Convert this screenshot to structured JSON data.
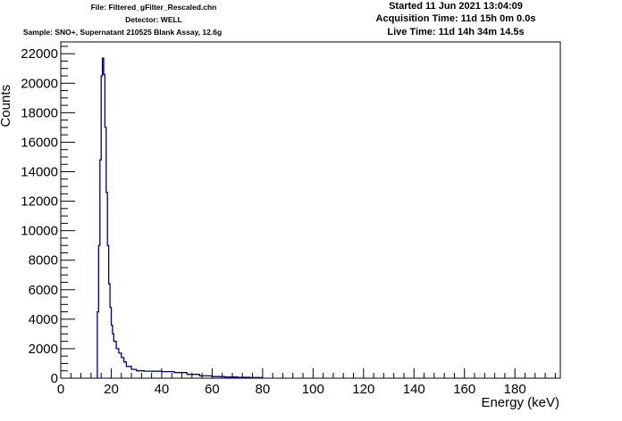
{
  "header": {
    "file": "File: Filtered_gFilter_Rescaled.chn",
    "detector": "Detector: WELL",
    "sample": "Sample: SNO+, Supernatant 210525 Blank Assay, 12.6g",
    "started": "Started 11 Jun 2021 13:04:09",
    "acquisition": "Acquisition Time: 11d 15h 0m 0.0s",
    "live": "Live Time: 11d 14h 34m 14.5s"
  },
  "chart_data": {
    "type": "line",
    "title": "",
    "xlabel": "Energy (keV)",
    "ylabel": "Counts",
    "xlim": [
      0,
      198
    ],
    "ylim": [
      0,
      22800
    ],
    "x_ticks": [
      0,
      20,
      40,
      60,
      80,
      100,
      120,
      140,
      160,
      180
    ],
    "y_ticks": [
      0,
      2000,
      4000,
      6000,
      8000,
      10000,
      12000,
      14000,
      16000,
      18000,
      20000,
      22000
    ],
    "line_color": "#000080",
    "series": [
      {
        "x": [
          14.5,
          15.0,
          15.5,
          16.0,
          16.5,
          17.0,
          17.5,
          18.0,
          18.5,
          19.0,
          19.5,
          20.0,
          20.5,
          21.0,
          22.0,
          23.0,
          24.0,
          25.0,
          26.0,
          28.0,
          30.0,
          33.0,
          36.0,
          40.0,
          45.0,
          50.0,
          55.0,
          60.0,
          65.0,
          70.0,
          75.0,
          80.0
        ],
        "y": [
          4500,
          9000,
          14800,
          20500,
          21700,
          20600,
          17000,
          12600,
          9000,
          6400,
          4800,
          3600,
          3000,
          2500,
          2000,
          1700,
          1400,
          1100,
          800,
          600,
          500,
          480,
          470,
          450,
          380,
          260,
          160,
          110,
          80,
          60,
          40,
          0
        ]
      }
    ]
  }
}
